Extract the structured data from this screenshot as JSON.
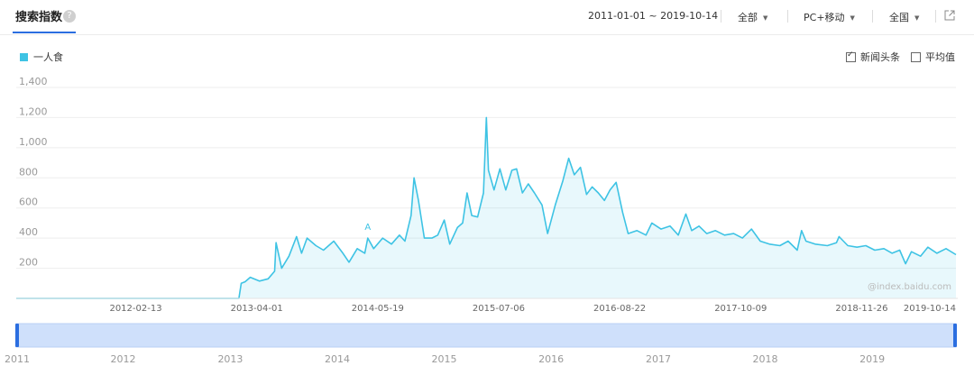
{
  "header": {
    "title": "搜索指数",
    "help_icon": "question-circle-icon",
    "date_range": "2011-01-01 ~ 2019-10-14",
    "source_select": "全部",
    "device_select": "PC+移动",
    "region_select": "全国",
    "export_icon": "external-link-icon",
    "accent_color": "#2b6ee0"
  },
  "legend": {
    "series_name": "一人食",
    "color": "#3ec3e4"
  },
  "options": {
    "news_headlines": "新闻头条",
    "news_checked": true,
    "average": "平均值",
    "average_checked": false
  },
  "watermark": "@index.baidu.com",
  "annotation": "A",
  "chart_data": {
    "type": "line",
    "series": [
      {
        "name": "一人食",
        "color": "#3ec3e4",
        "points": [
          [
            "2011-01-01",
            0
          ],
          [
            "2013-01-30",
            0
          ],
          [
            "2013-02-07",
            100
          ],
          [
            "2013-02-20",
            110
          ],
          [
            "2013-03-10",
            140
          ],
          [
            "2013-04-10",
            115
          ],
          [
            "2013-05-10",
            130
          ],
          [
            "2013-06-01",
            180
          ],
          [
            "2013-06-06",
            370
          ],
          [
            "2013-06-25",
            200
          ],
          [
            "2013-07-20",
            280
          ],
          [
            "2013-08-15",
            410
          ],
          [
            "2013-09-01",
            300
          ],
          [
            "2013-09-20",
            400
          ],
          [
            "2013-10-20",
            350
          ],
          [
            "2013-11-15",
            320
          ],
          [
            "2013-12-20",
            380
          ],
          [
            "2014-01-20",
            300
          ],
          [
            "2014-02-10",
            240
          ],
          [
            "2014-03-10",
            330
          ],
          [
            "2014-04-05",
            300
          ],
          [
            "2014-04-15",
            400
          ],
          [
            "2014-05-05",
            330
          ],
          [
            "2014-06-05",
            400
          ],
          [
            "2014-07-05",
            360
          ],
          [
            "2014-08-01",
            420
          ],
          [
            "2014-08-20",
            380
          ],
          [
            "2014-09-10",
            550
          ],
          [
            "2014-09-20",
            800
          ],
          [
            "2014-10-05",
            650
          ],
          [
            "2014-10-25",
            400
          ],
          [
            "2014-11-20",
            400
          ],
          [
            "2014-12-10",
            420
          ],
          [
            "2015-01-01",
            520
          ],
          [
            "2015-01-20",
            360
          ],
          [
            "2015-02-15",
            470
          ],
          [
            "2015-03-05",
            500
          ],
          [
            "2015-03-20",
            700
          ],
          [
            "2015-04-05",
            550
          ],
          [
            "2015-04-25",
            540
          ],
          [
            "2015-05-15",
            700
          ],
          [
            "2015-05-25",
            1200
          ],
          [
            "2015-06-01",
            850
          ],
          [
            "2015-06-20",
            720
          ],
          [
            "2015-07-10",
            860
          ],
          [
            "2015-07-30",
            720
          ],
          [
            "2015-08-20",
            850
          ],
          [
            "2015-09-05",
            860
          ],
          [
            "2015-09-25",
            700
          ],
          [
            "2015-10-15",
            760
          ],
          [
            "2015-11-05",
            700
          ],
          [
            "2015-12-01",
            620
          ],
          [
            "2015-12-20",
            430
          ],
          [
            "2016-01-15",
            620
          ],
          [
            "2016-02-10",
            780
          ],
          [
            "2016-03-01",
            930
          ],
          [
            "2016-03-20",
            820
          ],
          [
            "2016-04-10",
            870
          ],
          [
            "2016-05-01",
            690
          ],
          [
            "2016-05-20",
            740
          ],
          [
            "2016-06-10",
            700
          ],
          [
            "2016-07-01",
            650
          ],
          [
            "2016-07-20",
            720
          ],
          [
            "2016-08-10",
            770
          ],
          [
            "2016-09-01",
            570
          ],
          [
            "2016-09-20",
            430
          ],
          [
            "2016-10-20",
            450
          ],
          [
            "2016-11-20",
            420
          ],
          [
            "2016-12-10",
            500
          ],
          [
            "2017-01-10",
            460
          ],
          [
            "2017-02-10",
            480
          ],
          [
            "2017-03-10",
            420
          ],
          [
            "2017-04-05",
            560
          ],
          [
            "2017-04-25",
            450
          ],
          [
            "2017-05-20",
            480
          ],
          [
            "2017-06-15",
            430
          ],
          [
            "2017-07-15",
            450
          ],
          [
            "2017-08-15",
            420
          ],
          [
            "2017-09-15",
            430
          ],
          [
            "2017-10-15",
            400
          ],
          [
            "2017-11-15",
            460
          ],
          [
            "2017-12-15",
            380
          ],
          [
            "2018-01-15",
            360
          ],
          [
            "2018-02-20",
            350
          ],
          [
            "2018-03-20",
            380
          ],
          [
            "2018-04-20",
            320
          ],
          [
            "2018-05-05",
            450
          ],
          [
            "2018-05-20",
            380
          ],
          [
            "2018-06-20",
            360
          ],
          [
            "2018-08-01",
            350
          ],
          [
            "2018-09-01",
            370
          ],
          [
            "2018-09-10",
            410
          ],
          [
            "2018-10-10",
            350
          ],
          [
            "2018-11-10",
            340
          ],
          [
            "2018-12-10",
            350
          ],
          [
            "2019-01-10",
            320
          ],
          [
            "2019-02-10",
            330
          ],
          [
            "2019-03-10",
            300
          ],
          [
            "2019-04-05",
            320
          ],
          [
            "2019-04-25",
            230
          ],
          [
            "2019-05-15",
            310
          ],
          [
            "2019-06-15",
            280
          ],
          [
            "2019-07-10",
            340
          ],
          [
            "2019-08-10",
            300
          ],
          [
            "2019-09-10",
            330
          ],
          [
            "2019-10-14",
            290
          ]
        ]
      }
    ],
    "y_ticks": [
      "200",
      "400",
      "600",
      "800",
      "1,000",
      "1,200",
      "1,400"
    ],
    "ylim": [
      0,
      1400
    ],
    "x_ticks": [
      "2012-02-13",
      "2013-04-01",
      "2014-05-19",
      "2015-07-06",
      "2016-08-22",
      "2017-10-09",
      "2018-11-26",
      "2019-10-14"
    ],
    "xlim": [
      "2011-01-01",
      "2019-10-14"
    ],
    "grid": true,
    "area_fill": true,
    "annotation_date": "2014-04-15"
  },
  "navigator": {
    "year_labels": [
      "2011",
      "2012",
      "2013",
      "2014",
      "2015",
      "2016",
      "2017",
      "2018",
      "2019"
    ],
    "fill_color": "#cfe0fb",
    "handle_color": "#2b6ee0"
  }
}
